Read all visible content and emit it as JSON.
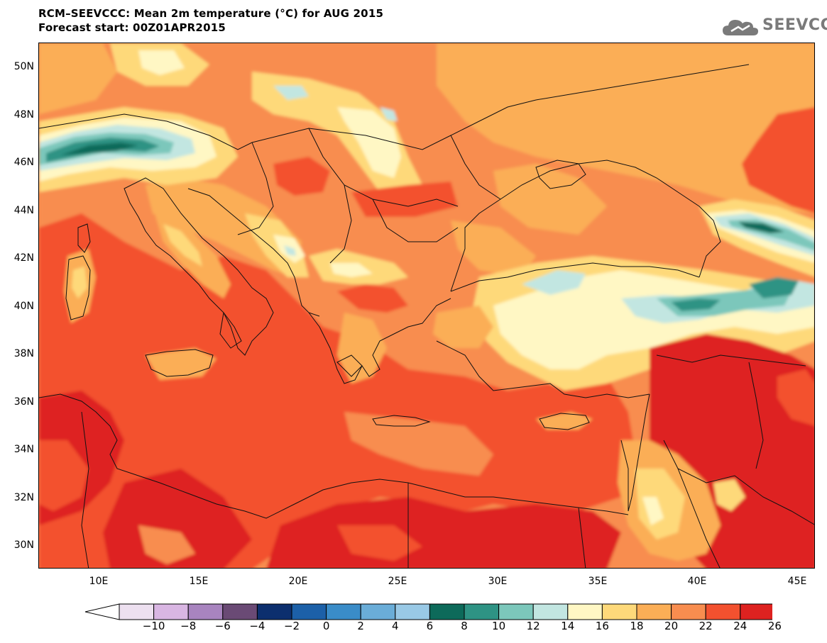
{
  "title": {
    "line1": "RCM–SEEVCCC: Mean 2m temperature (°C) for AUG 2015",
    "line2": "Forecast start: 00Z01APR2015"
  },
  "logo": {
    "text": "SEEVCCC",
    "icon": "cloud-icon"
  },
  "map": {
    "lat_labels": [
      "50N",
      "48N",
      "46N",
      "44N",
      "42N",
      "40N",
      "38N",
      "36N",
      "34N",
      "32N",
      "30N"
    ],
    "lon_labels": [
      "10E",
      "15E",
      "20E",
      "25E",
      "30E",
      "35E",
      "40E",
      "45E"
    ],
    "colorbar": {
      "labels": [
        "−10",
        "−8",
        "−6",
        "−4",
        "−2",
        "0",
        "2",
        "4",
        "6",
        "8",
        "10",
        "12",
        "14",
        "16",
        "18",
        "20",
        "22",
        "24",
        "26"
      ],
      "colors": [
        "#ede0f0",
        "#d9b6e3",
        "#a884bf",
        "#6a4a75",
        "#0c2f6e",
        "#1c60a8",
        "#3a8cc8",
        "#6aadd8",
        "#99c9e6",
        "#0d6a5a",
        "#2e9384",
        "#7cc7bb",
        "#c2e6e1",
        "#fff7c4",
        "#fed97a",
        "#fbae56",
        "#f88d4f",
        "#f3512f",
        "#de2220"
      ],
      "min_color": "#ffffff",
      "max_color": "#de2220"
    },
    "palette": {
      "t18": "#fff7c4",
      "t20": "#fed97a",
      "t22": "#fbae56",
      "t24": "#f88d4f",
      "t26": "#f3512f",
      "t28": "#de2220",
      "t14": "#c2e6e1",
      "t12": "#7cc7bb",
      "t10": "#2e9384"
    }
  }
}
